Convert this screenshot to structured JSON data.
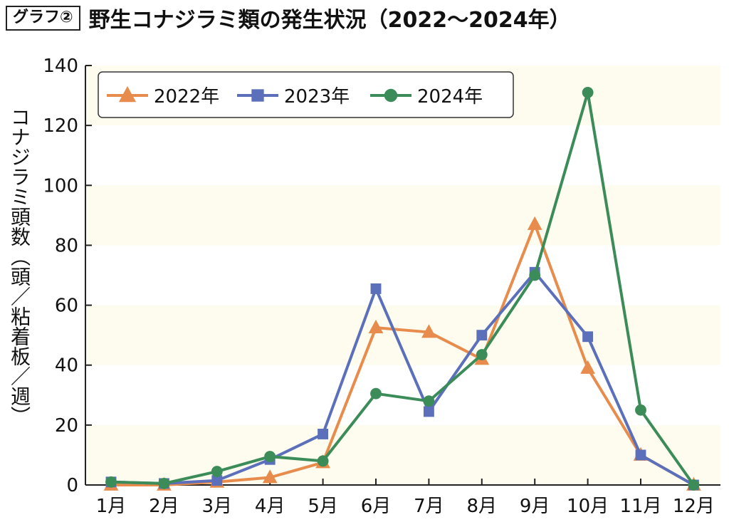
{
  "header": {
    "badge": "グラフ②",
    "title": "野生コナジラミ類の発生状況（2022〜2024年）"
  },
  "chart_data": {
    "type": "line",
    "title": "野生コナジラミ類の発生状況（2022〜2024年）",
    "ylabel": "コナジラミ頭数（頭／粘着板／週）",
    "xlabel": "",
    "categories": [
      "1月",
      "2月",
      "3月",
      "4月",
      "5月",
      "6月",
      "7月",
      "8月",
      "9月",
      "10月",
      "11月",
      "12月"
    ],
    "ylim": [
      0,
      140
    ],
    "yticks": [
      0,
      20,
      40,
      60,
      80,
      100,
      120,
      140
    ],
    "legend_position": "top-left",
    "band_color": "#fdfcef",
    "series": [
      {
        "name": "2022年",
        "marker": "triangle",
        "color": "#e78c4c",
        "values": [
          0,
          0,
          1,
          2.5,
          7.5,
          52.5,
          51,
          42,
          87,
          39,
          10,
          0
        ]
      },
      {
        "name": "2023年",
        "marker": "square",
        "color": "#5b6fba",
        "values": [
          1,
          0.5,
          1.5,
          8.5,
          17,
          65.5,
          24.5,
          50,
          71,
          49.5,
          10,
          0
        ]
      },
      {
        "name": "2024年",
        "marker": "circle",
        "color": "#3b8c58",
        "values": [
          1,
          0.5,
          4.5,
          9.5,
          8,
          30.5,
          28,
          43.5,
          70,
          131,
          25,
          0
        ]
      }
    ]
  }
}
